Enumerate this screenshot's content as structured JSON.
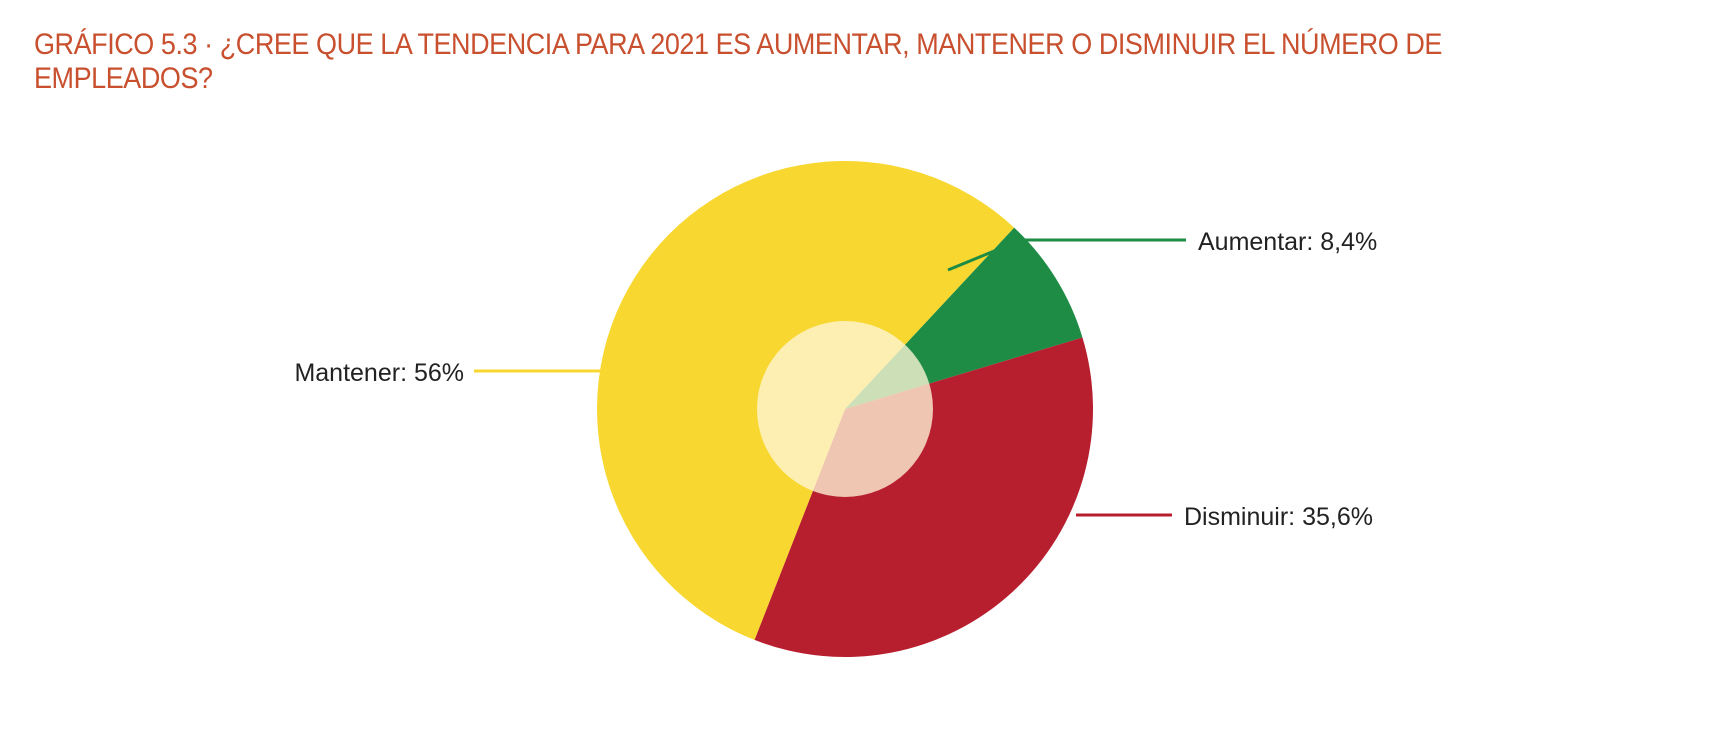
{
  "chart_data": {
    "type": "pie",
    "title": "GRÁFICO 5.3 · ¿CREE QUE LA TENDENCIA PARA 2021 ES AUMENTAR, MANTENER O DISMINUIR EL NÚMERO DE EMPLEADOS?",
    "slices": [
      {
        "name": "Aumentar",
        "value": 8.4,
        "label": "Aumentar: 8,4%",
        "color": "#1e8c45"
      },
      {
        "name": "Disminuir",
        "value": 35.6,
        "label": "Disminuir: 35,6%",
        "color": "#b81f2e"
      },
      {
        "name": "Mantener",
        "value": 56,
        "label": "Mantener: 56%",
        "color": "#f7d730"
      }
    ],
    "unit": "%",
    "legend": "none",
    "center_highlight_color": "#fff6d6"
  }
}
